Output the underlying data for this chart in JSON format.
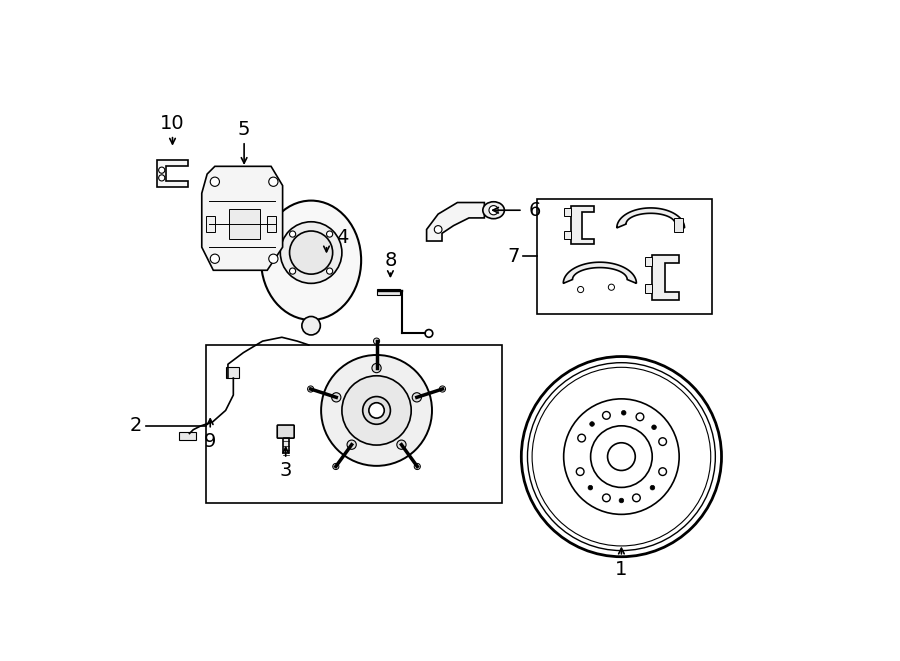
{
  "bg": "#ffffff",
  "lc": "#000000",
  "lw": 1.2,
  "figsize": [
    9.0,
    6.61
  ],
  "dpi": 100
}
